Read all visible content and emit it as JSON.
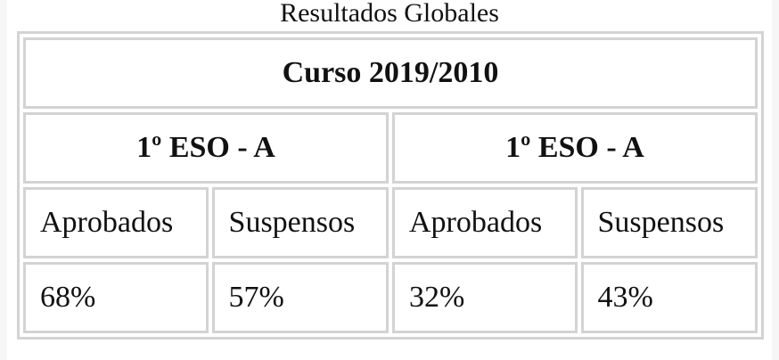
{
  "caption": "Resultados Globales",
  "course": "Curso 2019/2010",
  "groups": [
    {
      "name": "1º ESO - A",
      "columns": [
        "Aprobados",
        "Suspensos"
      ],
      "values": [
        "68%",
        "57%"
      ]
    },
    {
      "name": "1º ESO - A",
      "columns": [
        "Aprobados",
        "Suspensos"
      ],
      "values": [
        "32%",
        "43%"
      ]
    }
  ]
}
